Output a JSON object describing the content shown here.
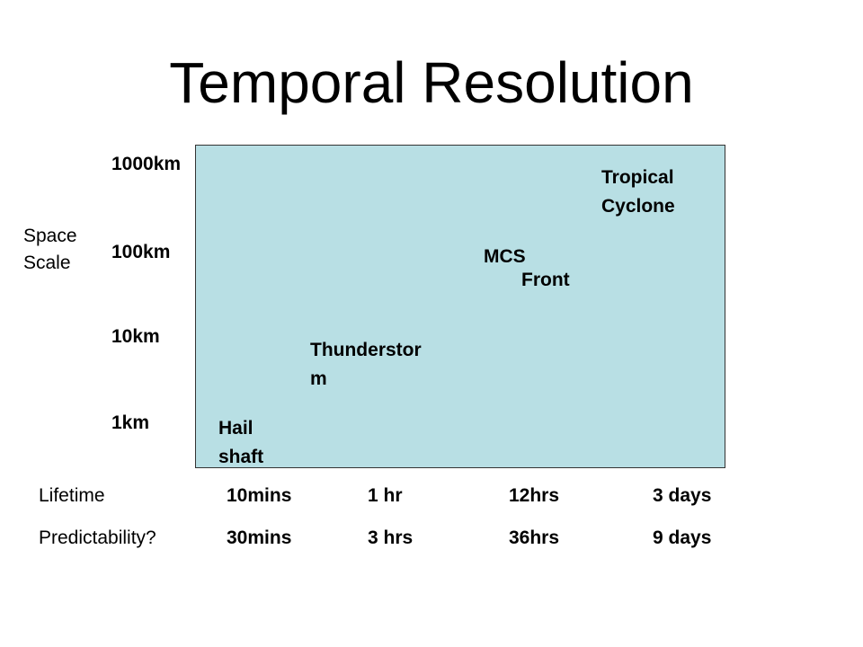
{
  "title": "Temporal Resolution",
  "space_axis": {
    "title_line1": "Space",
    "title_line2": "Scale",
    "levels": [
      "1000km",
      "100km",
      "10km",
      "1km"
    ]
  },
  "phenomena": {
    "tropical_cyclone": {
      "line1": "Tropical",
      "line2": "Cyclone"
    },
    "mcs": "MCS",
    "front": "Front",
    "thunderstorm": {
      "line1": "Thunderstor",
      "line2": "m"
    },
    "hail_shaft": {
      "line1": "Hail",
      "line2": "shaft"
    }
  },
  "lifetime": {
    "label": "Lifetime",
    "values": [
      "10mins",
      "1 hr",
      "12hrs",
      "3 days"
    ]
  },
  "predictability": {
    "label": "Predictability?",
    "values": [
      "30mins",
      "3 hrs",
      "36hrs",
      "9 days"
    ]
  },
  "colors": {
    "panel_fill": "#b8dfe4",
    "panel_border": "#333333"
  }
}
